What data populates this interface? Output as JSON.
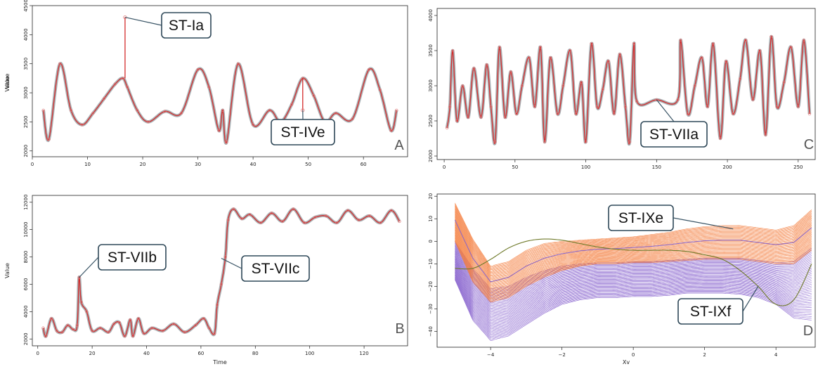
{
  "chart_data": [
    {
      "panel": "A",
      "type": "line",
      "corner_label": "A",
      "xlabel": "",
      "ylabel": "Value",
      "xlim": [
        0,
        68
      ],
      "ylim": [
        1900,
        4500
      ],
      "xticks": [
        0,
        10,
        20,
        30,
        40,
        50,
        60
      ],
      "yticks": [
        2000,
        2500,
        3000,
        3500,
        4000,
        4500
      ],
      "series": [
        {
          "x": [
            2,
            3,
            5,
            7,
            9,
            11,
            13,
            15,
            16.4,
            17.2,
            19,
            21,
            24,
            27,
            30,
            32,
            33.8,
            34.5,
            35.2,
            37.3,
            40,
            43,
            45,
            47,
            49,
            51,
            53,
            55,
            58,
            61,
            63,
            65,
            66
          ],
          "y": [
            2700,
            2200,
            3500,
            2700,
            2450,
            2650,
            2900,
            3150,
            3250,
            3100,
            2700,
            2500,
            2680,
            2650,
            3400,
            3100,
            2350,
            2700,
            2150,
            3500,
            2450,
            2700,
            2500,
            2800,
            3250,
            2950,
            2500,
            2650,
            2550,
            3400,
            3050,
            2350,
            2700
          ]
        }
      ],
      "anomalies": [
        {
          "x": 16.8,
          "y": 4300,
          "base": 3250
        },
        {
          "x": 49.0,
          "y": 2700,
          "base": 3250
        }
      ],
      "callouts": [
        {
          "text": "ST-Ia",
          "x": 16.8,
          "y": 4300
        },
        {
          "text": "ST-IVe",
          "x": 49.0,
          "y": 2700
        }
      ]
    },
    {
      "panel": "C",
      "type": "line",
      "corner_label": "C",
      "xlabel": "",
      "ylabel": "Value",
      "xlim": [
        -5,
        262
      ],
      "ylim": [
        1950,
        4100
      ],
      "xticks": [
        0,
        50,
        100,
        150,
        200,
        250
      ],
      "yticks": [
        2000,
        2500,
        3000,
        3500,
        4000
      ],
      "series": [
        {
          "x": [
            2,
            4,
            6,
            9,
            13,
            17,
            21,
            26,
            30,
            33,
            36,
            39,
            43,
            47,
            51,
            55,
            60,
            64,
            68,
            71,
            75,
            80,
            84,
            89,
            93,
            97,
            100,
            104,
            108,
            112,
            116,
            120,
            124,
            128,
            131,
            134,
            136,
            150,
            165,
            167,
            172,
            177,
            182,
            186,
            190,
            195,
            199,
            204,
            209,
            213,
            218,
            223,
            227,
            231,
            235,
            240,
            245,
            250,
            254,
            258
          ],
          "y": [
            2400,
            2700,
            3500,
            2500,
            3000,
            2550,
            3250,
            2550,
            3300,
            2700,
            2200,
            3550,
            2550,
            3200,
            2600,
            3000,
            3400,
            2700,
            3550,
            2200,
            3400,
            2600,
            3000,
            3500,
            2600,
            3050,
            2200,
            3600,
            2700,
            2950,
            3350,
            2600,
            3450,
            2700,
            2200,
            3600,
            2780,
            2800,
            2800,
            3650,
            2600,
            3000,
            3400,
            2700,
            3600,
            2250,
            3350,
            2600,
            3100,
            3650,
            2800,
            3500,
            2300,
            3700,
            2700,
            3050,
            3550,
            2700,
            3650,
            2600
          ]
        }
      ],
      "anomalies": [],
      "callouts": [
        {
          "text": "ST-VIIa",
          "x": 150,
          "y": 2800
        }
      ]
    },
    {
      "panel": "B",
      "type": "line",
      "corner_label": "B",
      "xlabel": "Time",
      "ylabel": "Value",
      "xlim": [
        -2,
        136
      ],
      "ylim": [
        1500,
        12500
      ],
      "xticks": [
        0,
        20,
        40,
        60,
        80,
        100,
        120
      ],
      "yticks": [
        2000,
        4000,
        6000,
        8000,
        10000,
        12000
      ],
      "series": [
        {
          "x": [
            2,
            3,
            5,
            7,
            9,
            11,
            13,
            14.5,
            15.2,
            16,
            18,
            20,
            23,
            26,
            28,
            30,
            32,
            34,
            35,
            37,
            39,
            42,
            46,
            50,
            54,
            58,
            61,
            63,
            65,
            66,
            67.5,
            69,
            70,
            72,
            75,
            78,
            82,
            86,
            90,
            94,
            98,
            102,
            106,
            110,
            114,
            118,
            122,
            126,
            130,
            133
          ],
          "y": [
            2800,
            2200,
            3500,
            2600,
            2500,
            3000,
            2700,
            3000,
            6500,
            4700,
            4000,
            2600,
            2800,
            2500,
            3100,
            3200,
            2200,
            3400,
            2200,
            3500,
            2400,
            2800,
            2600,
            3100,
            2500,
            3000,
            3500,
            2800,
            2400,
            4500,
            6000,
            8000,
            10700,
            11500,
            10800,
            11100,
            10500,
            11200,
            10600,
            11500,
            10500,
            10900,
            11000,
            10500,
            11400,
            10700,
            11000,
            10500,
            11400,
            10600
          ]
        }
      ],
      "anomalies": [],
      "callouts": [
        {
          "text": "ST-VIIb",
          "x": 15.2,
          "y": 6500
        },
        {
          "text": "ST-VIIc",
          "x": 67.5,
          "y": 7900
        }
      ]
    },
    {
      "panel": "D",
      "type": "line",
      "corner_label": "D",
      "xlabel": "Xv",
      "ylabel": "",
      "xlim": [
        -5.5,
        5.1
      ],
      "ylim": [
        -47,
        21
      ],
      "xticks": [
        -4,
        -2,
        0,
        2,
        4
      ],
      "yticks": [
        -40,
        -30,
        -20,
        -10,
        0,
        10,
        20
      ],
      "curve_x": [
        -5,
        -4.5,
        -4,
        -3.5,
        -3,
        -2.5,
        -2,
        -1.5,
        -1,
        -0.5,
        0,
        0.5,
        1,
        1.5,
        2,
        2.5,
        3,
        3.5,
        4,
        4.5,
        5
      ],
      "orange_top": [
        17,
        1,
        -11,
        -9,
        -4,
        -1,
        0,
        0.5,
        1,
        1.5,
        2,
        3,
        4,
        5.5,
        6.5,
        7,
        7,
        6,
        5,
        7,
        14
      ],
      "orange_bottom": [
        0,
        -18,
        -27,
        -25,
        -20,
        -16,
        -13,
        -11,
        -10,
        -10,
        -9.5,
        -9.5,
        -9,
        -8.5,
        -8,
        -8,
        -8,
        -9,
        -10,
        -10,
        -4
      ],
      "purple_bottom": [
        -17,
        -35,
        -44,
        -42,
        -37,
        -32,
        -28,
        -26,
        -25,
        -25,
        -24.5,
        -24.5,
        -24,
        -23,
        -23,
        -23,
        -23.5,
        -25,
        -28,
        -34,
        -35
      ],
      "purple_top": [
        0,
        -12,
        -21,
        -20,
        -16,
        -13,
        -11,
        -10,
        -9.5,
        -9.5,
        -9,
        -9,
        -8.5,
        -8,
        -7.5,
        -7.5,
        -7.5,
        -8.5,
        -9.5,
        -9,
        -3
      ],
      "anomaly_x": [
        -5,
        -4.5,
        -4,
        -3.5,
        -3,
        -2.5,
        -2,
        -1.5,
        -1,
        -0.5,
        0,
        0.5,
        1,
        1.5,
        2,
        2.5,
        3,
        3.5,
        4,
        4.5,
        5
      ],
      "anomaly_y": [
        -12,
        -12,
        -8,
        -3,
        0,
        1,
        0.5,
        -1,
        -2.5,
        -3.5,
        -4,
        -4,
        -4,
        -4.5,
        -6,
        -8,
        -13,
        -20,
        -28,
        -26,
        -10
      ],
      "colors": {
        "orange": "#f47c3c",
        "purple": "#7b52c9",
        "olive": "#6f7a2a",
        "middle_line": "#8866cc"
      },
      "callouts": [
        {
          "text": "ST-IXe",
          "x": 2.8,
          "y": 5.5
        },
        {
          "text": "ST-IXf",
          "x": 3.5,
          "y": -20
        }
      ]
    }
  ]
}
